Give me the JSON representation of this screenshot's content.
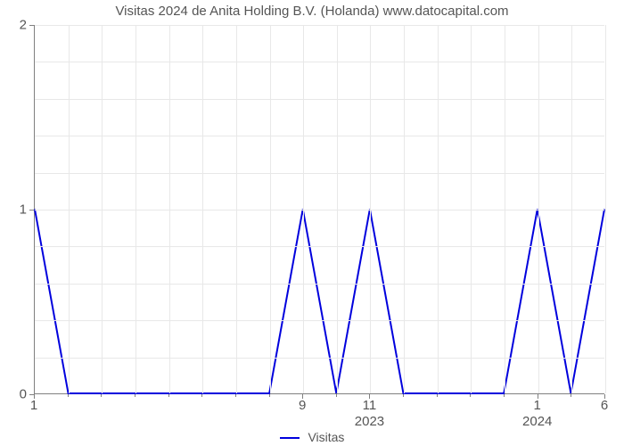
{
  "title": "Visitas 2024 de Anita Holding B.V. (Holanda) www.datocapital.com",
  "chart": {
    "type": "line",
    "background_color": "#ffffff",
    "grid_color": "#e8e8e8",
    "axis_color": "#808080",
    "text_color": "#555555",
    "title_fontsize": 15,
    "tick_fontsize": 15,
    "line_color": "#0000dd",
    "line_width": 2,
    "ylim": [
      0,
      2
    ],
    "y_ticks": [
      0,
      1,
      2
    ],
    "n_points": 18,
    "values": [
      1,
      0,
      0,
      0,
      0,
      0,
      0,
      0,
      1,
      0,
      1,
      0,
      0,
      0,
      0,
      1,
      0,
      1
    ],
    "x_major_labels": [
      {
        "idx": 0,
        "text": "1"
      },
      {
        "idx": 8,
        "text": "9"
      },
      {
        "idx": 10,
        "text": "11"
      },
      {
        "idx": 15,
        "text": "1"
      },
      {
        "idx": 17,
        "text": "6"
      }
    ],
    "x_groups": [
      {
        "idx": 10,
        "text": "2023"
      },
      {
        "idx": 15,
        "text": "2024"
      }
    ],
    "legend_label": "Visitas"
  }
}
